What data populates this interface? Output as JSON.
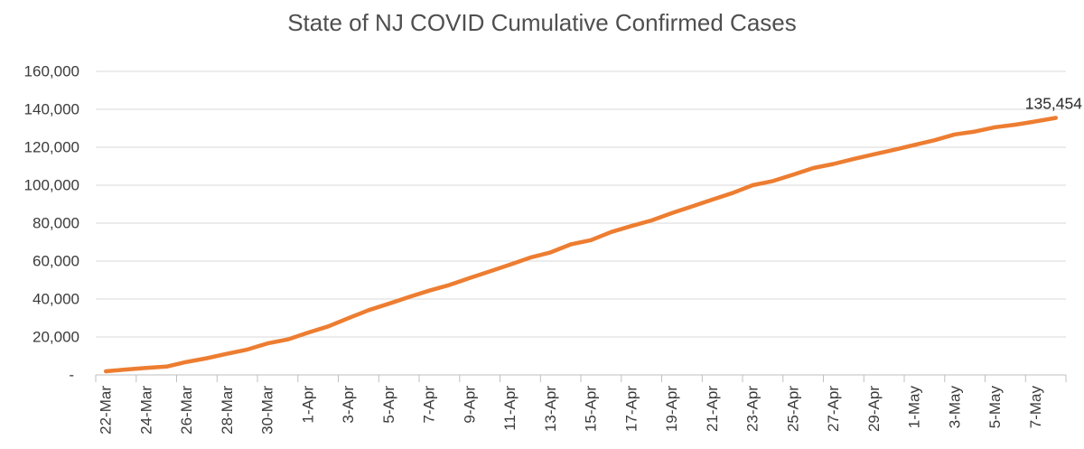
{
  "chart_data": {
    "type": "line",
    "title": "State of NJ COVID Cumulative Confirmed Cases",
    "x": [
      "22-Mar",
      "23-Mar",
      "24-Mar",
      "25-Mar",
      "26-Mar",
      "27-Mar",
      "28-Mar",
      "29-Mar",
      "30-Mar",
      "31-Mar",
      "1-Apr",
      "2-Apr",
      "3-Apr",
      "4-Apr",
      "5-Apr",
      "6-Apr",
      "7-Apr",
      "8-Apr",
      "9-Apr",
      "10-Apr",
      "11-Apr",
      "12-Apr",
      "13-Apr",
      "14-Apr",
      "15-Apr",
      "16-Apr",
      "17-Apr",
      "18-Apr",
      "19-Apr",
      "20-Apr",
      "21-Apr",
      "22-Apr",
      "23-Apr",
      "24-Apr",
      "25-Apr",
      "26-Apr",
      "27-Apr",
      "28-Apr",
      "29-Apr",
      "30-Apr",
      "1-May",
      "2-May",
      "3-May",
      "4-May",
      "5-May",
      "6-May",
      "7-May",
      "8-May"
    ],
    "values": [
      1914,
      2844,
      3675,
      4402,
      6876,
      8825,
      11124,
      13386,
      16636,
      18696,
      22255,
      25590,
      29895,
      34124,
      37505,
      41090,
      44416,
      47437,
      51027,
      54588,
      58151,
      61850,
      64584,
      68824,
      71030,
      75317,
      78467,
      81420,
      85301,
      88806,
      92387,
      95865,
      99989,
      102196,
      105523,
      109038,
      111188,
      113856,
      116264,
      118652,
      121190,
      123717,
      126744,
      128269,
      130593,
      131890,
      133635,
      135454
    ],
    "x_label_interval": 2,
    "ylim": [
      0,
      160000
    ],
    "yticks": [
      0,
      20000,
      40000,
      60000,
      80000,
      100000,
      120000,
      140000,
      160000
    ],
    "ytick_labels": [
      "-",
      "20,000",
      "40,000",
      "60,000",
      "80,000",
      "100,000",
      "120,000",
      "140,000",
      "160,000"
    ],
    "grid": "horizontal",
    "legend": "none",
    "last_point_label": "135,454",
    "colors": {
      "line": "#ED7D31",
      "gridline": "#D9D9D9",
      "axis_line": "#BFBFBF",
      "axis_text": "#3b3b3b",
      "title_text": "#4f4f4f",
      "data_label": "#2b2b2b"
    }
  }
}
